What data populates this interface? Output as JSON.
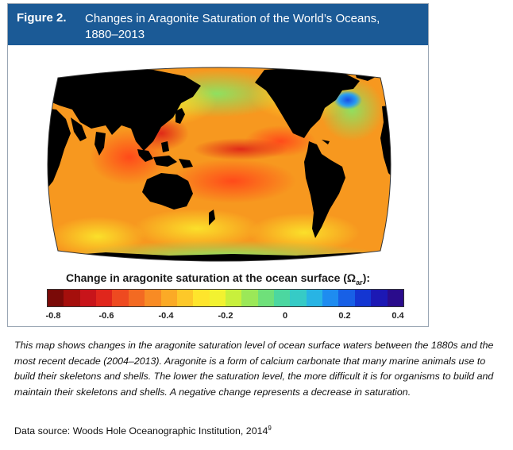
{
  "figure": {
    "number": "Figure 2.",
    "title_line1": "Changes in Aragonite Saturation of the World’s Oceans,",
    "title_line2": "1880–2013"
  },
  "legend": {
    "title": "Change in aragonite saturation at the ocean surface (Ω",
    "title_subscript": "ar",
    "title_end": "):",
    "ticks": [
      "-0.8",
      "-0.6",
      "-0.4",
      "-0.2",
      "0",
      "0.2",
      "0.4"
    ],
    "range": [
      -0.8,
      0.4
    ],
    "colors": [
      "#7a0a08",
      "#a50f0c",
      "#c8141a",
      "#e0261c",
      "#ee4a20",
      "#f36a22",
      "#f88b24",
      "#fbaa26",
      "#fdc829",
      "#fee52c",
      "#f2f230",
      "#c8f03c",
      "#9be858",
      "#6fe07a",
      "#4cd7a0",
      "#36cbc6",
      "#28b4e4",
      "#1e8cf0",
      "#1860e6",
      "#1436d2",
      "#1c18b4",
      "#2a0c8c"
    ],
    "color_scheme": "red-orange-yellow-cyan-blue"
  },
  "caption": "This map shows changes in the aragonite saturation level of ocean surface waters between the 1880s and the most recent decade (2004–2013). Aragonite is a form of calcium carbonate that many marine animals use to build their skeletons and shells. The lower the saturation level, the more difficult it is for organisms to build and maintain their skeletons and shells. A negative change represents a decrease in saturation.",
  "source": {
    "text": "Data source: Woods Hole Oceanographic Institution, 2014",
    "footnote": "9"
  },
  "map": {
    "projection": "Robinson-like, Pacific-centered",
    "ocean_base_color": "#f7981f",
    "land_color": "#000000"
  }
}
